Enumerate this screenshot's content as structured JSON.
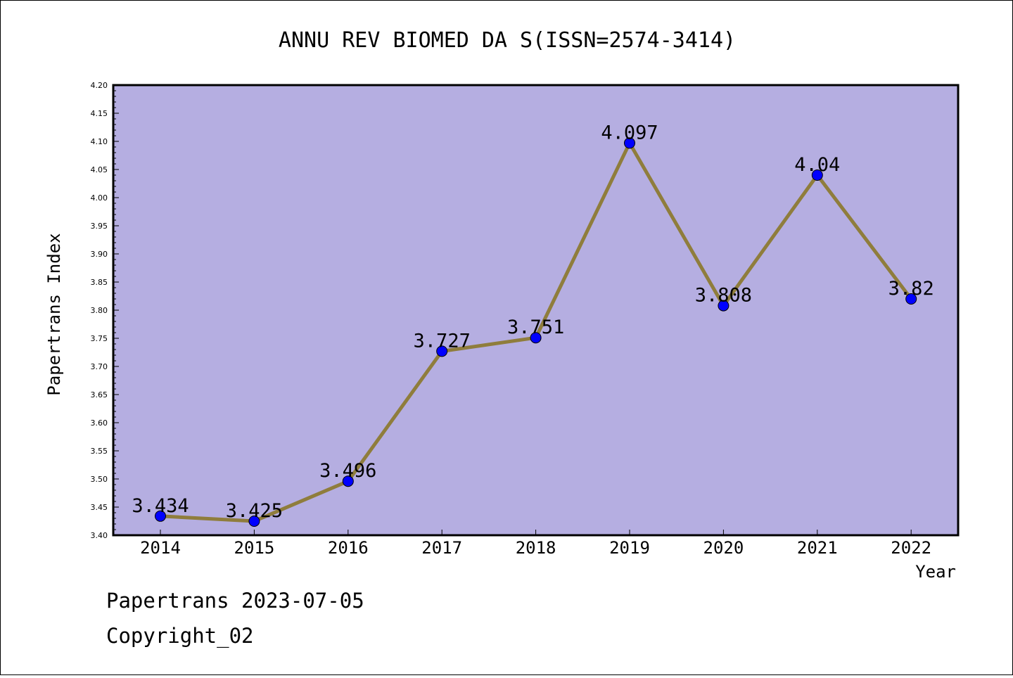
{
  "chart_data": {
    "type": "line",
    "title": "ANNU REV BIOMED DA S(ISSN=2574-3414)",
    "xlabel": "Year",
    "ylabel": "Papertrans Index",
    "categories": [
      "2014",
      "2015",
      "2016",
      "2017",
      "2018",
      "2019",
      "2020",
      "2021",
      "2022"
    ],
    "values": [
      3.434,
      3.425,
      3.496,
      3.727,
      3.751,
      4.097,
      3.808,
      4.04,
      3.82
    ],
    "data_labels": [
      "3.434",
      "3.425",
      "3.496",
      "3.727",
      "3.751",
      "4.097",
      "3.808",
      "4.04",
      "3.82"
    ],
    "ylim": [
      3.4,
      4.2
    ],
    "yticks": [
      "3.40",
      "3.45",
      "3.50",
      "3.55",
      "3.60",
      "3.65",
      "3.70",
      "3.75",
      "3.80",
      "3.85",
      "3.90",
      "3.95",
      "4.00",
      "4.05",
      "4.10",
      "4.15",
      "4.20"
    ],
    "grid": false,
    "colors": {
      "plot_background": "#b5aee1",
      "line": "#8f7d3c",
      "marker": "#0000ff"
    }
  },
  "footer": {
    "line1": "Papertrans 2023-07-05",
    "line2": "Copyright_02"
  }
}
